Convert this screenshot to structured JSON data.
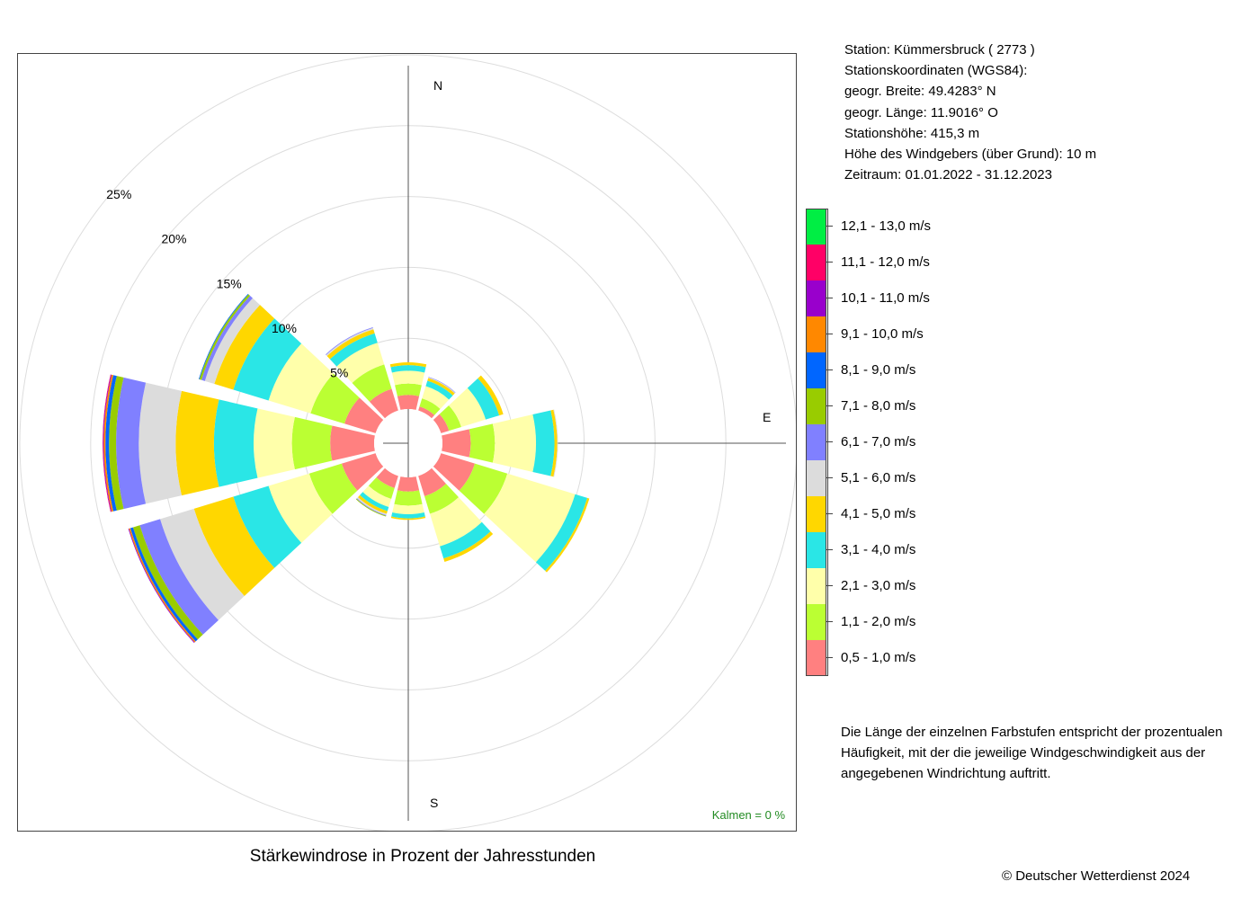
{
  "station": {
    "line1": "Station:  Kümmersbruck  ( 2773 )",
    "line2": "Stationskoordinaten (WGS84):",
    "line3": "geogr. Breite: 49.4283° N",
    "line4": "geogr. Länge: 11.9016° O",
    "line5": "Stationshöhe: 415,3 m",
    "line6": "Höhe des Windgebers (über Grund): 10 m",
    "line7": "Zeitraum: 01.01.2022 - 31.12.2023"
  },
  "explanation": "Die Länge der einzelnen Farbstufen entspricht der prozentualen Häufigkeit, mit der die jeweilige Windgeschwindigkeit aus der angegebenen Windrichtung auftritt.",
  "title": "Stärkewindrose in Prozent der Jahresstunden",
  "copyright": "© Deutscher Wetterdienst  2024",
  "calm_text": "Kalmen  =  0 %",
  "compass": {
    "n": "N",
    "e": "E",
    "s": "S"
  },
  "chart_data": {
    "type": "windrose",
    "title": "Stärkewindrose in Prozent der Jahresstunden",
    "unit": "%",
    "rmax": 25,
    "ring_values": [
      5,
      10,
      15,
      20,
      25
    ],
    "ring_labels": [
      "5%",
      "10%",
      "15%",
      "20%",
      "25%"
    ],
    "calm_percent": 0,
    "directions_deg": [
      0,
      30,
      60,
      90,
      120,
      150,
      180,
      210,
      240,
      270,
      300,
      330
    ],
    "speed_classes": [
      {
        "label": "0,5 - 1,0 m/s",
        "color": "#ff8080"
      },
      {
        "label": "1,1 - 2,0 m/s",
        "color": "#bbff33"
      },
      {
        "label": "2,1 - 3,0 m/s",
        "color": "#ffffaa"
      },
      {
        "label": "3,1 - 4,0 m/s",
        "color": "#2ae6e6"
      },
      {
        "label": "4,1 - 5,0 m/s",
        "color": "#ffd700"
      },
      {
        "label": "5,1 - 6,0 m/s",
        "color": "#dcdcdc"
      },
      {
        "label": "6,1 - 7,0 m/s",
        "color": "#8080ff"
      },
      {
        "label": "7,1 - 8,0 m/s",
        "color": "#99cc00"
      },
      {
        "label": "8,1 - 9,0 m/s",
        "color": "#0066ff"
      },
      {
        "label": "9,1 - 10,0 m/s",
        "color": "#ff8800"
      },
      {
        "label": "10,1 - 11,0 m/s",
        "color": "#9900cc"
      },
      {
        "label": "11,1 - 12,0 m/s",
        "color": "#ff0066"
      },
      {
        "label": "12,1 - 13,0 m/s",
        "color": "#00ee44"
      }
    ],
    "frequencies": [
      [
        1.0,
        0.8,
        0.9,
        0.4,
        0.2,
        0,
        0,
        0,
        0,
        0,
        0,
        0,
        0
      ],
      [
        0.3,
        0.6,
        0.9,
        0.4,
        0.2,
        0.05,
        0.03,
        0,
        0,
        0,
        0,
        0,
        0
      ],
      [
        0.6,
        0.9,
        1.8,
        1.0,
        0.3,
        0,
        0,
        0,
        0,
        0,
        0,
        0,
        0
      ],
      [
        2.0,
        1.7,
        2.9,
        1.3,
        0.2,
        0.05,
        0,
        0,
        0,
        0,
        0,
        0,
        0
      ],
      [
        2.5,
        2.4,
        5.0,
        0.9,
        0.15,
        0,
        0,
        0,
        0,
        0,
        0,
        0,
        0
      ],
      [
        1.5,
        1.3,
        2.4,
        0.9,
        0.25,
        0,
        0,
        0,
        0,
        0,
        0,
        0,
        0
      ],
      [
        1.0,
        1.0,
        0.6,
        0.3,
        0.1,
        0,
        0,
        0,
        0,
        0,
        0,
        0,
        0
      ],
      [
        0.9,
        0.8,
        0.6,
        0.3,
        0.2,
        0.1,
        0.05,
        0.05,
        0,
        0,
        0,
        0,
        0
      ],
      [
        2.5,
        2.4,
        3.0,
        2.6,
        2.9,
        2.5,
        1.5,
        0.5,
        0.2,
        0.1,
        0.05,
        0,
        0
      ],
      [
        3.1,
        2.7,
        2.7,
        2.8,
        2.7,
        2.6,
        1.6,
        0.5,
        0.25,
        0.12,
        0.05,
        0.03,
        0
      ],
      [
        2.3,
        2.5,
        3.1,
        2.6,
        1.4,
        0.7,
        0.25,
        0.15,
        0.05,
        0,
        0,
        0,
        0
      ],
      [
        1.6,
        1.8,
        1.6,
        0.7,
        0.3,
        0.1,
        0.05,
        0,
        0,
        0,
        0,
        0,
        0
      ]
    ]
  }
}
